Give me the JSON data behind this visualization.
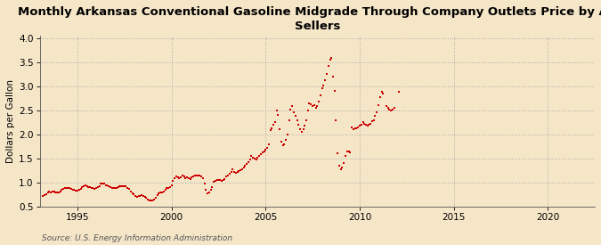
{
  "title": "Monthly Arkansas Conventional Gasoline Midgrade Through Company Outlets Price by All\nSellers",
  "ylabel": "Dollars per Gallon",
  "source": "Source: U.S. Energy Information Administration",
  "background_color": "#f5e6c8",
  "xlim": [
    1993.0,
    2022.5
  ],
  "ylim": [
    0.5,
    4.05
  ],
  "xticks": [
    1995,
    2000,
    2005,
    2010,
    2015,
    2020
  ],
  "yticks": [
    0.5,
    1.0,
    1.5,
    2.0,
    2.5,
    3.0,
    3.5,
    4.0
  ],
  "marker_color": "#cc0000",
  "marker_size": 4.5,
  "data": [
    [
      1993.17,
      0.72
    ],
    [
      1993.25,
      0.74
    ],
    [
      1993.33,
      0.76
    ],
    [
      1993.42,
      0.8
    ],
    [
      1993.5,
      0.82
    ],
    [
      1993.58,
      0.8
    ],
    [
      1993.67,
      0.82
    ],
    [
      1993.75,
      0.82
    ],
    [
      1993.83,
      0.8
    ],
    [
      1993.92,
      0.79
    ],
    [
      1994.0,
      0.8
    ],
    [
      1994.08,
      0.82
    ],
    [
      1994.17,
      0.84
    ],
    [
      1994.25,
      0.87
    ],
    [
      1994.33,
      0.88
    ],
    [
      1994.42,
      0.88
    ],
    [
      1994.5,
      0.88
    ],
    [
      1994.58,
      0.88
    ],
    [
      1994.67,
      0.86
    ],
    [
      1994.75,
      0.84
    ],
    [
      1994.83,
      0.84
    ],
    [
      1994.92,
      0.83
    ],
    [
      1995.0,
      0.83
    ],
    [
      1995.08,
      0.84
    ],
    [
      1995.17,
      0.86
    ],
    [
      1995.25,
      0.9
    ],
    [
      1995.33,
      0.92
    ],
    [
      1995.42,
      0.94
    ],
    [
      1995.5,
      0.92
    ],
    [
      1995.58,
      0.91
    ],
    [
      1995.67,
      0.9
    ],
    [
      1995.75,
      0.89
    ],
    [
      1995.83,
      0.88
    ],
    [
      1995.92,
      0.87
    ],
    [
      1996.0,
      0.88
    ],
    [
      1996.08,
      0.9
    ],
    [
      1996.17,
      0.93
    ],
    [
      1996.25,
      0.97
    ],
    [
      1996.33,
      0.98
    ],
    [
      1996.42,
      0.97
    ],
    [
      1996.5,
      0.95
    ],
    [
      1996.58,
      0.94
    ],
    [
      1996.67,
      0.92
    ],
    [
      1996.75,
      0.9
    ],
    [
      1996.83,
      0.89
    ],
    [
      1996.92,
      0.88
    ],
    [
      1997.0,
      0.88
    ],
    [
      1997.08,
      0.89
    ],
    [
      1997.17,
      0.91
    ],
    [
      1997.25,
      0.93
    ],
    [
      1997.33,
      0.93
    ],
    [
      1997.42,
      0.93
    ],
    [
      1997.5,
      0.92
    ],
    [
      1997.58,
      0.92
    ],
    [
      1997.67,
      0.89
    ],
    [
      1997.75,
      0.86
    ],
    [
      1997.83,
      0.82
    ],
    [
      1997.92,
      0.78
    ],
    [
      1998.0,
      0.75
    ],
    [
      1998.08,
      0.72
    ],
    [
      1998.17,
      0.71
    ],
    [
      1998.25,
      0.72
    ],
    [
      1998.33,
      0.72
    ],
    [
      1998.42,
      0.73
    ],
    [
      1998.5,
      0.72
    ],
    [
      1998.58,
      0.7
    ],
    [
      1998.67,
      0.68
    ],
    [
      1998.75,
      0.65
    ],
    [
      1998.83,
      0.63
    ],
    [
      1998.92,
      0.62
    ],
    [
      1999.0,
      0.63
    ],
    [
      1999.08,
      0.65
    ],
    [
      1999.17,
      0.68
    ],
    [
      1999.25,
      0.74
    ],
    [
      1999.33,
      0.77
    ],
    [
      1999.42,
      0.79
    ],
    [
      1999.5,
      0.8
    ],
    [
      1999.58,
      0.82
    ],
    [
      1999.67,
      0.85
    ],
    [
      1999.75,
      0.88
    ],
    [
      1999.83,
      0.88
    ],
    [
      1999.92,
      0.9
    ],
    [
      2000.0,
      0.95
    ],
    [
      2000.08,
      1.03
    ],
    [
      2000.17,
      1.08
    ],
    [
      2000.25,
      1.12
    ],
    [
      2000.33,
      1.1
    ],
    [
      2000.42,
      1.08
    ],
    [
      2000.5,
      1.1
    ],
    [
      2000.58,
      1.14
    ],
    [
      2000.67,
      1.12
    ],
    [
      2000.75,
      1.08
    ],
    [
      2000.83,
      1.1
    ],
    [
      2000.92,
      1.08
    ],
    [
      2001.0,
      1.07
    ],
    [
      2001.08,
      1.1
    ],
    [
      2001.17,
      1.12
    ],
    [
      2001.25,
      1.14
    ],
    [
      2001.33,
      1.15
    ],
    [
      2001.42,
      1.14
    ],
    [
      2001.5,
      1.15
    ],
    [
      2001.58,
      1.12
    ],
    [
      2001.67,
      1.08
    ],
    [
      2001.75,
      0.98
    ],
    [
      2001.83,
      0.85
    ],
    [
      2001.92,
      0.78
    ],
    [
      2002.0,
      0.8
    ],
    [
      2002.08,
      0.85
    ],
    [
      2002.17,
      0.9
    ],
    [
      2002.25,
      1.02
    ],
    [
      2002.33,
      1.04
    ],
    [
      2002.42,
      1.05
    ],
    [
      2002.5,
      1.06
    ],
    [
      2002.58,
      1.05
    ],
    [
      2002.67,
      1.04
    ],
    [
      2002.75,
      1.05
    ],
    [
      2002.83,
      1.07
    ],
    [
      2002.92,
      1.12
    ],
    [
      2003.0,
      1.15
    ],
    [
      2003.08,
      1.18
    ],
    [
      2003.17,
      1.22
    ],
    [
      2003.25,
      1.28
    ],
    [
      2003.33,
      1.22
    ],
    [
      2003.42,
      1.2
    ],
    [
      2003.5,
      1.22
    ],
    [
      2003.58,
      1.24
    ],
    [
      2003.67,
      1.26
    ],
    [
      2003.75,
      1.28
    ],
    [
      2003.83,
      1.32
    ],
    [
      2003.92,
      1.35
    ],
    [
      2004.0,
      1.38
    ],
    [
      2004.08,
      1.42
    ],
    [
      2004.17,
      1.48
    ],
    [
      2004.25,
      1.55
    ],
    [
      2004.33,
      1.52
    ],
    [
      2004.42,
      1.5
    ],
    [
      2004.5,
      1.48
    ],
    [
      2004.58,
      1.52
    ],
    [
      2004.67,
      1.55
    ],
    [
      2004.75,
      1.58
    ],
    [
      2004.83,
      1.62
    ],
    [
      2004.92,
      1.65
    ],
    [
      2005.0,
      1.68
    ],
    [
      2005.08,
      1.72
    ],
    [
      2005.17,
      1.8
    ],
    [
      2005.25,
      2.08
    ],
    [
      2005.33,
      2.12
    ],
    [
      2005.42,
      2.2
    ],
    [
      2005.5,
      2.25
    ],
    [
      2005.58,
      2.5
    ],
    [
      2005.67,
      2.4
    ],
    [
      2005.75,
      2.1
    ],
    [
      2005.83,
      1.85
    ],
    [
      2005.92,
      1.78
    ],
    [
      2006.0,
      1.8
    ],
    [
      2006.08,
      1.88
    ],
    [
      2006.17,
      2.0
    ],
    [
      2006.25,
      2.3
    ],
    [
      2006.33,
      2.52
    ],
    [
      2006.42,
      2.58
    ],
    [
      2006.5,
      2.45
    ],
    [
      2006.58,
      2.38
    ],
    [
      2006.67,
      2.3
    ],
    [
      2006.75,
      2.2
    ],
    [
      2006.83,
      2.1
    ],
    [
      2006.92,
      2.05
    ],
    [
      2007.0,
      2.1
    ],
    [
      2007.08,
      2.18
    ],
    [
      2007.17,
      2.3
    ],
    [
      2007.25,
      2.5
    ],
    [
      2007.33,
      2.65
    ],
    [
      2007.42,
      2.62
    ],
    [
      2007.5,
      2.58
    ],
    [
      2007.58,
      2.6
    ],
    [
      2007.67,
      2.55
    ],
    [
      2007.75,
      2.58
    ],
    [
      2007.83,
      2.68
    ],
    [
      2007.92,
      2.8
    ],
    [
      2008.0,
      2.95
    ],
    [
      2008.08,
      3.02
    ],
    [
      2008.17,
      3.12
    ],
    [
      2008.25,
      3.25
    ],
    [
      2008.33,
      3.42
    ],
    [
      2008.42,
      3.55
    ],
    [
      2008.5,
      3.58
    ],
    [
      2008.58,
      3.2
    ],
    [
      2008.67,
      2.9
    ],
    [
      2008.75,
      2.3
    ],
    [
      2008.83,
      1.6
    ],
    [
      2008.92,
      1.35
    ],
    [
      2009.0,
      1.28
    ],
    [
      2009.08,
      1.32
    ],
    [
      2009.17,
      1.4
    ],
    [
      2009.25,
      1.55
    ],
    [
      2009.33,
      1.65
    ],
    [
      2009.42,
      1.65
    ],
    [
      2009.5,
      1.62
    ],
    [
      2009.58,
      2.15
    ],
    [
      2009.67,
      2.1
    ],
    [
      2009.75,
      2.12
    ],
    [
      2009.83,
      2.12
    ],
    [
      2009.92,
      2.15
    ],
    [
      2010.0,
      2.18
    ],
    [
      2010.08,
      2.2
    ],
    [
      2010.17,
      2.25
    ],
    [
      2010.25,
      2.22
    ],
    [
      2010.33,
      2.2
    ],
    [
      2010.42,
      2.18
    ],
    [
      2010.5,
      2.2
    ],
    [
      2010.58,
      2.22
    ],
    [
      2010.67,
      2.28
    ],
    [
      2010.75,
      2.3
    ],
    [
      2010.83,
      2.38
    ],
    [
      2010.92,
      2.45
    ],
    [
      2011.0,
      2.6
    ],
    [
      2011.08,
      2.78
    ],
    [
      2011.17,
      2.88
    ],
    [
      2011.25,
      2.85
    ],
    [
      2011.42,
      2.58
    ],
    [
      2011.5,
      2.55
    ],
    [
      2011.58,
      2.52
    ],
    [
      2011.67,
      2.5
    ],
    [
      2011.75,
      2.52
    ],
    [
      2011.83,
      2.55
    ],
    [
      2012.08,
      2.88
    ]
  ]
}
